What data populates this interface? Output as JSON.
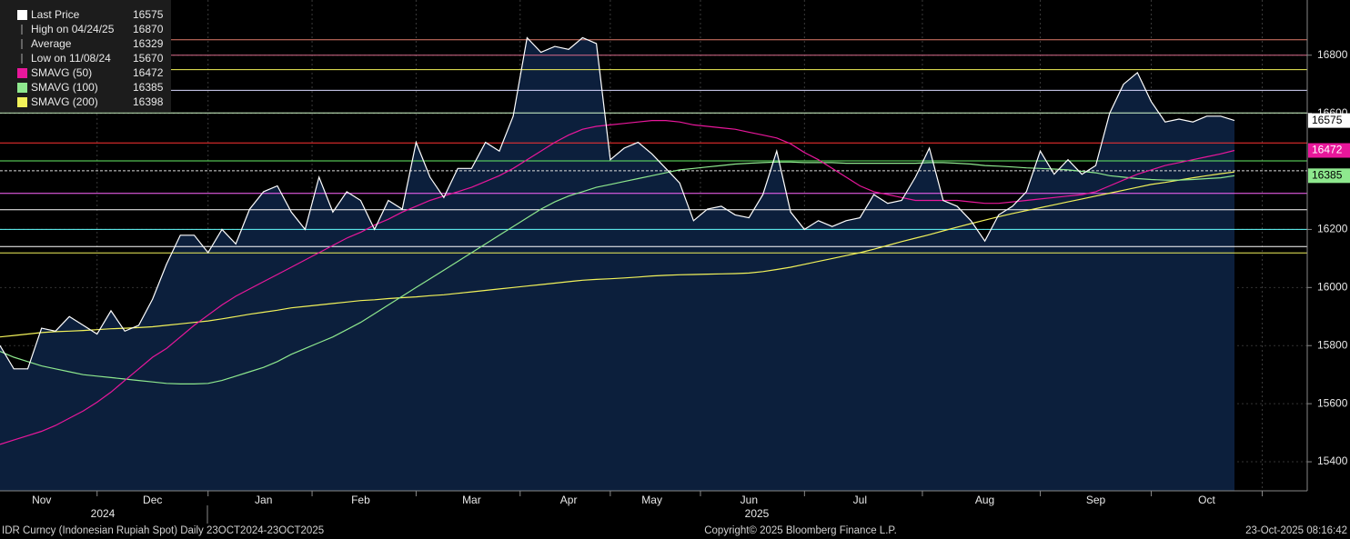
{
  "chart_data": {
    "type": "line",
    "categories": [
      null,
      null,
      null,
      "Nov",
      null,
      null,
      null,
      null,
      null,
      null,
      null,
      "Dec",
      null,
      null,
      null,
      null,
      null,
      null,
      null,
      "Jan",
      null,
      null,
      null,
      null,
      null,
      null,
      "Feb",
      null,
      null,
      null,
      null,
      null,
      null,
      null,
      "Mar",
      null,
      null,
      null,
      null,
      null,
      null,
      "Apr",
      null,
      null,
      null,
      null,
      null,
      "May",
      null,
      null,
      null,
      null,
      null,
      null,
      "Jun",
      null,
      null,
      null,
      null,
      null,
      null,
      null,
      "Jul",
      null,
      null,
      null,
      null,
      null,
      null,
      null,
      null,
      "Aug",
      null,
      null,
      null,
      null,
      null,
      null,
      null,
      "Sep",
      null,
      null,
      null,
      null,
      null,
      null,
      null,
      "Oct",
      null,
      null
    ],
    "year_labels": [
      "2024",
      "2025"
    ],
    "series": [
      {
        "name": "Last Price",
        "color": "#ffffff",
        "legend_value": 16575,
        "area": true,
        "values": [
          15800,
          15720,
          15720,
          15860,
          15850,
          15900,
          15870,
          15840,
          15920,
          15850,
          15870,
          15960,
          16080,
          16180,
          16180,
          16120,
          16200,
          16150,
          16270,
          16330,
          16350,
          16260,
          16200,
          16380,
          16260,
          16330,
          16300,
          16200,
          16300,
          16270,
          16500,
          16380,
          16310,
          16410,
          16410,
          16500,
          16470,
          16590,
          16860,
          16810,
          16830,
          16820,
          16860,
          16840,
          16440,
          16480,
          16500,
          16460,
          16410,
          16360,
          16230,
          16270,
          16280,
          16250,
          16240,
          16320,
          16470,
          16260,
          16200,
          16230,
          16210,
          16230,
          16240,
          16320,
          16290,
          16300,
          16380,
          16480,
          16300,
          16280,
          16230,
          16160,
          16250,
          16280,
          16330,
          16470,
          16390,
          16440,
          16390,
          16420,
          16600,
          16700,
          16740,
          16640,
          16570,
          16580,
          16570,
          16590,
          16590,
          16575
        ]
      },
      {
        "name": "SMAVG (50)",
        "color": "#e8179b",
        "legend_value": 16472,
        "values": [
          15460,
          15475,
          15490,
          15505,
          15525,
          15550,
          15575,
          15605,
          15640,
          15680,
          15720,
          15760,
          15790,
          15830,
          15870,
          15905,
          15940,
          15970,
          15995,
          16020,
          16045,
          16070,
          16095,
          16120,
          16145,
          16170,
          16190,
          16215,
          16235,
          16260,
          16280,
          16300,
          16315,
          16330,
          16345,
          16365,
          16385,
          16410,
          16440,
          16470,
          16500,
          16525,
          16545,
          16555,
          16560,
          16565,
          16570,
          16575,
          16575,
          16570,
          16560,
          16555,
          16550,
          16545,
          16535,
          16525,
          16515,
          16495,
          16465,
          16440,
          16410,
          16380,
          16350,
          16330,
          16320,
          16310,
          16300,
          16300,
          16300,
          16300,
          16295,
          16290,
          16290,
          16295,
          16300,
          16305,
          16310,
          16315,
          16320,
          16330,
          16350,
          16370,
          16390,
          16405,
          16420,
          16430,
          16440,
          16450,
          16460,
          16472
        ]
      },
      {
        "name": "SMAVG (100)",
        "color": "#8ee88e",
        "legend_value": 16385,
        "values": [
          15780,
          15760,
          15745,
          15730,
          15720,
          15710,
          15700,
          15695,
          15690,
          15685,
          15680,
          15675,
          15670,
          15668,
          15668,
          15670,
          15680,
          15695,
          15710,
          15725,
          15745,
          15770,
          15790,
          15810,
          15830,
          15855,
          15880,
          15910,
          15940,
          15970,
          16000,
          16030,
          16060,
          16090,
          16120,
          16150,
          16180,
          16210,
          16240,
          16270,
          16295,
          16315,
          16330,
          16345,
          16355,
          16365,
          16375,
          16385,
          16395,
          16405,
          16410,
          16415,
          16420,
          16425,
          16428,
          16430,
          16432,
          16432,
          16430,
          16430,
          16430,
          16428,
          16428,
          16428,
          16428,
          16428,
          16428,
          16430,
          16430,
          16428,
          16425,
          16420,
          16418,
          16415,
          16412,
          16410,
          16408,
          16405,
          16400,
          16395,
          16385,
          16380,
          16375,
          16372,
          16370,
          16370,
          16372,
          16375,
          16378,
          16385
        ]
      },
      {
        "name": "SMAVG (200)",
        "color": "#f2f25a",
        "legend_value": 16398,
        "values": [
          15830,
          15835,
          15840,
          15845,
          15848,
          15850,
          15852,
          15855,
          15858,
          15860,
          15862,
          15865,
          15870,
          15875,
          15880,
          15885,
          15892,
          15900,
          15908,
          15915,
          15922,
          15930,
          15935,
          15940,
          15945,
          15950,
          15955,
          15958,
          15962,
          15965,
          15968,
          15972,
          15975,
          15980,
          15985,
          15990,
          15995,
          16000,
          16005,
          16010,
          16015,
          16020,
          16025,
          16028,
          16030,
          16033,
          16036,
          16040,
          16042,
          16044,
          16045,
          16046,
          16047,
          16048,
          16050,
          16055,
          16062,
          16070,
          16080,
          16090,
          16100,
          16110,
          16120,
          16132,
          16145,
          16158,
          16170,
          16182,
          16195,
          16208,
          16220,
          16232,
          16244,
          16255,
          16265,
          16275,
          16285,
          16295,
          16305,
          16315,
          16325,
          16335,
          16345,
          16355,
          16362,
          16370,
          16378,
          16385,
          16392,
          16398
        ]
      }
    ],
    "stats": [
      {
        "label": "High on 04/24/25",
        "value": 16870
      },
      {
        "label": "Average",
        "value": 16329
      },
      {
        "label": "Low on 11/08/24",
        "value": 15670
      }
    ],
    "reference_lines": [
      {
        "value": 16853,
        "color": "#e07a6a"
      },
      {
        "value": 16800,
        "color": "#d86a8a"
      },
      {
        "value": 16750,
        "color": "#f2f25a"
      },
      {
        "value": 16679,
        "color": "#d8d8ff"
      },
      {
        "value": 16601,
        "color": "#d8ffd0"
      },
      {
        "value": 16498,
        "color": "#ff3333"
      },
      {
        "value": 16436,
        "color": "#66ee66"
      },
      {
        "value": 16402,
        "color": "#dddddd"
      },
      {
        "value": 16324,
        "color": "#ff66ff"
      },
      {
        "value": 16268,
        "color": "#ffffff"
      },
      {
        "value": 16200,
        "color": "#66ffff"
      },
      {
        "value": 16141,
        "color": "#ffffff"
      },
      {
        "value": 16119,
        "color": "#f2f25a"
      }
    ],
    "ylim": [
      15300,
      16990
    ],
    "yticks": [
      15400,
      15600,
      15800,
      16000,
      16200,
      16600,
      16800
    ],
    "footer_left": "IDR Curncy (Indonesian Rupiah Spot) Daily 23OCT2024-23OCT2025",
    "footer_center": "Copyright© 2025 Bloomberg Finance L.P.",
    "footer_right": "23-Oct-2025 08:16:42"
  }
}
